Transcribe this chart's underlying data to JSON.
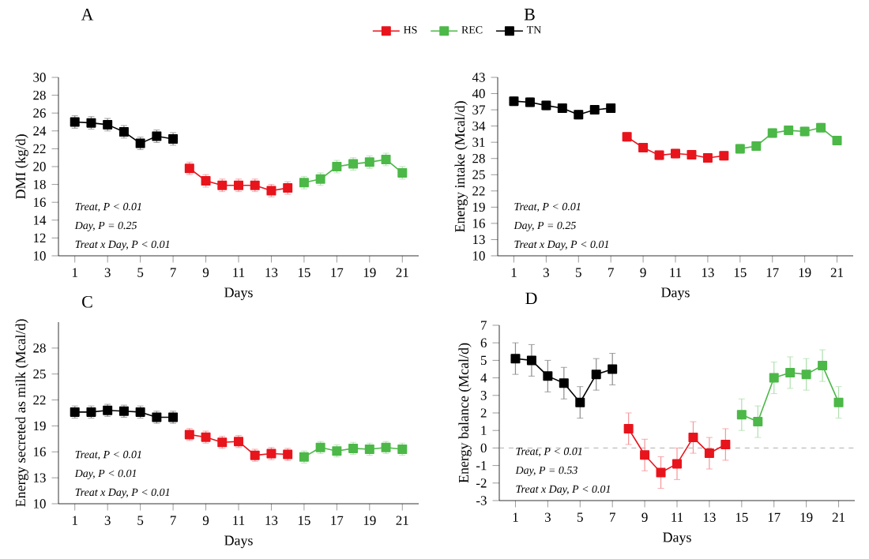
{
  "chart_data": [
    {
      "type": "line",
      "title": "A",
      "xlabel": "Days",
      "ylabel": "DMI (kg/d)",
      "marker": "square",
      "legend": "top",
      "xlim": [
        0,
        22
      ],
      "xticks": [
        1,
        3,
        5,
        7,
        9,
        11,
        13,
        15,
        17,
        19,
        21
      ],
      "ylim": [
        10,
        30
      ],
      "yticks": [
        10,
        12,
        14,
        16,
        18,
        20,
        22,
        24,
        26,
        28,
        30
      ],
      "annotations": [
        "Treat, P < 0.01",
        "Day, P = 0.25",
        "Treat x Day, P < 0.01"
      ],
      "series": [
        {
          "name": "HS",
          "color": "#e8141c",
          "x": [
            8,
            9,
            10,
            11,
            12,
            13,
            14
          ],
          "values": [
            19.8,
            18.4,
            17.9,
            17.9,
            17.9,
            17.3,
            17.6
          ],
          "errors": [
            0.7,
            0.7,
            0.7,
            0.7,
            0.7,
            0.7,
            0.7
          ]
        },
        {
          "name": "REC",
          "color": "#4cb848",
          "x": [
            15,
            16,
            17,
            18,
            19,
            20,
            21
          ],
          "values": [
            18.2,
            18.6,
            20.0,
            20.3,
            20.5,
            20.8,
            19.3
          ],
          "errors": [
            0.7,
            0.7,
            0.7,
            0.7,
            0.7,
            0.7,
            0.7
          ]
        },
        {
          "name": "TN",
          "color": "#000000",
          "x": [
            1,
            2,
            3,
            4,
            5,
            6,
            7
          ],
          "values": [
            25.0,
            24.9,
            24.7,
            23.9,
            22.6,
            23.4,
            23.1
          ],
          "errors": [
            0.7,
            0.7,
            0.7,
            0.7,
            0.7,
            0.7,
            0.7
          ]
        }
      ]
    },
    {
      "type": "line",
      "title": "B",
      "xlabel": "Days",
      "ylabel": "Energy intake (Mcal/d)",
      "marker": "square",
      "xlim": [
        0,
        22
      ],
      "xticks": [
        1,
        3,
        5,
        7,
        9,
        11,
        13,
        15,
        17,
        19,
        21
      ],
      "ylim": [
        10,
        43
      ],
      "yticks": [
        10,
        13,
        16,
        19,
        22,
        25,
        28,
        31,
        34,
        37,
        40,
        43
      ],
      "annotations": [
        "Treat, P < 0.01",
        "Day, P = 0.25",
        "Treat x Day, P < 0.01"
      ],
      "series": [
        {
          "color": "#e8141c",
          "x": [
            8,
            9,
            10,
            11,
            12,
            13,
            14
          ],
          "values": [
            32.0,
            30.0,
            28.6,
            28.9,
            28.7,
            28.1,
            28.5
          ],
          "errors": [
            0.8,
            0.8,
            0.8,
            0.8,
            0.8,
            0.8,
            0.8
          ]
        },
        {
          "color": "#4cb848",
          "x": [
            15,
            16,
            17,
            18,
            19,
            20,
            21
          ],
          "values": [
            29.8,
            30.3,
            32.7,
            33.2,
            33.0,
            33.7,
            31.3
          ],
          "errors": [
            0.8,
            0.8,
            0.8,
            0.8,
            0.8,
            0.8,
            0.8
          ]
        },
        {
          "color": "#000000",
          "x": [
            1,
            2,
            3,
            4,
            5,
            6,
            7
          ],
          "values": [
            38.6,
            38.4,
            37.8,
            37.3,
            36.1,
            37.0,
            37.3
          ],
          "errors": [
            0.8,
            0.8,
            0.8,
            0.8,
            0.8,
            0.8,
            0.8
          ]
        }
      ]
    },
    {
      "type": "line",
      "title": "C",
      "xlabel": "Days",
      "ylabel": "Energy secreted as milk (Mcal/d)",
      "marker": "square",
      "xlim": [
        0,
        22
      ],
      "xticks": [
        1,
        3,
        5,
        7,
        9,
        11,
        13,
        15,
        17,
        19,
        21
      ],
      "ylim": [
        10,
        31
      ],
      "yticks": [
        10,
        13,
        16,
        19,
        22,
        25,
        28
      ],
      "annotations": [
        "Treat, P < 0.01",
        "Day, P < 0.01",
        "Treat x Day, P < 0.01"
      ],
      "series": [
        {
          "color": "#e8141c",
          "x": [
            8,
            9,
            10,
            11,
            12,
            13,
            14
          ],
          "values": [
            18.0,
            17.7,
            17.1,
            17.2,
            15.6,
            15.8,
            15.7
          ],
          "errors": [
            0.7,
            0.7,
            0.7,
            0.7,
            0.7,
            0.7,
            0.7
          ]
        },
        {
          "color": "#4cb848",
          "x": [
            15,
            16,
            17,
            18,
            19,
            20,
            21
          ],
          "values": [
            15.4,
            16.5,
            16.1,
            16.4,
            16.3,
            16.5,
            16.3
          ],
          "errors": [
            0.7,
            0.7,
            0.7,
            0.7,
            0.7,
            0.7,
            0.7
          ]
        },
        {
          "color": "#000000",
          "x": [
            1,
            2,
            3,
            4,
            5,
            6,
            7
          ],
          "values": [
            20.6,
            20.6,
            20.8,
            20.7,
            20.6,
            20.0,
            20.0
          ],
          "errors": [
            0.7,
            0.7,
            0.7,
            0.7,
            0.7,
            0.7,
            0.7
          ]
        }
      ]
    },
    {
      "type": "line",
      "title": "D",
      "xlabel": "Days",
      "ylabel": "Energy balance (Mcal/d)",
      "marker": "square",
      "xlim": [
        0,
        22
      ],
      "xticks": [
        1,
        3,
        5,
        7,
        9,
        11,
        13,
        15,
        17,
        19,
        21
      ],
      "ylim": [
        -3,
        7
      ],
      "yticks": [
        -3,
        -2,
        -1,
        0,
        1,
        2,
        3,
        4,
        5,
        6,
        7
      ],
      "annotations": [
        "Treat, P < 0.01",
        "Day, P = 0.53",
        "Treat x Day, P < 0.01"
      ],
      "ref_lines": [
        {
          "axis": "y",
          "value": 0,
          "color": "#999999",
          "line_style": "dashed"
        }
      ],
      "series": [
        {
          "color": "#e8141c",
          "x": [
            8,
            9,
            10,
            11,
            12,
            13,
            14
          ],
          "values": [
            1.1,
            -0.4,
            -1.4,
            -0.9,
            0.6,
            -0.3,
            0.2
          ],
          "errors": [
            0.9,
            0.9,
            0.9,
            0.9,
            0.9,
            0.9,
            0.9
          ]
        },
        {
          "color": "#4cb848",
          "x": [
            15,
            16,
            17,
            18,
            19,
            20,
            21
          ],
          "values": [
            1.9,
            1.5,
            4.0,
            4.3,
            4.2,
            4.7,
            2.6
          ],
          "errors": [
            0.9,
            0.9,
            0.9,
            0.9,
            0.9,
            0.9,
            0.9
          ]
        },
        {
          "color": "#000000",
          "x": [
            1,
            2,
            3,
            4,
            5,
            6,
            7
          ],
          "values": [
            5.1,
            5.0,
            4.1,
            3.7,
            2.6,
            4.2,
            4.5
          ],
          "errors": [
            0.9,
            0.9,
            0.9,
            0.9,
            0.9,
            0.9,
            0.9
          ]
        }
      ]
    }
  ]
}
